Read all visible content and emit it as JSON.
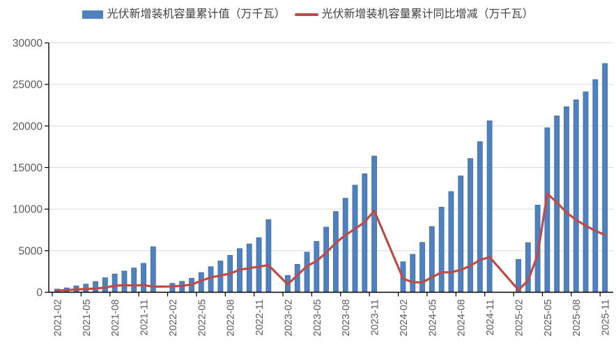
{
  "legend": {
    "items": [
      {
        "label": "光伏新增装机容量累计值（万千瓦）",
        "type": "bar"
      },
      {
        "label": "光伏新增装机容量累计同比增减（万千瓦）",
        "type": "line"
      }
    ],
    "position": "top"
  },
  "colors": {
    "bar": "#4E81BD",
    "bar_border": "#3A6496",
    "line": "#BE4B48",
    "grid": "#D9D9D9",
    "axis": "#000000",
    "tick_label": "#595959",
    "legend_text": "#3F3F3F",
    "background": "#FFFFFF"
  },
  "chart_data": {
    "type": "bar+line",
    "title": "",
    "x_unit": "month",
    "months": [
      "2021-02",
      "2021-03",
      "2021-04",
      "2021-05",
      "2021-06",
      "2021-07",
      "2021-08",
      "2021-09",
      "2021-10",
      "2021-11",
      "2021-12",
      "2022-02",
      "2022-03",
      "2022-04",
      "2022-05",
      "2022-06",
      "2022-07",
      "2022-08",
      "2022-09",
      "2022-10",
      "2022-11",
      "2022-12",
      "2023-02",
      "2023-03",
      "2023-04",
      "2023-05",
      "2023-06",
      "2023-07",
      "2023-08",
      "2023-09",
      "2023-10",
      "2023-11",
      "2024-02",
      "2024-03",
      "2024-04",
      "2024-05",
      "2024-06",
      "2024-07",
      "2024-08",
      "2024-09",
      "2024-10",
      "2024-11",
      "2025-02",
      "2025-03",
      "2025-04",
      "2025-05",
      "2025-06",
      "2025-07",
      "2025-08",
      "2025-09",
      "2025-10",
      "2025-11"
    ],
    "series": [
      {
        "name": "光伏新增装机容量累计值（万千瓦）",
        "type": "bar",
        "color": "#4E81BD",
        "values": [
          390,
          533,
          769,
          992,
          1301,
          1752,
          2205,
          2556,
          2931,
          3483,
          5488,
          1086,
          1321,
          1688,
          2371,
          3088,
          3773,
          4447,
          5260,
          5824,
          6571,
          8741,
          2037,
          3366,
          4831,
          6121,
          7842,
          9716,
          11316,
          12894,
          14256,
          16388,
          3672,
          4574,
          6011,
          7915,
          10248,
          12116,
          13999,
          16088,
          18130,
          20630,
          3947,
          5971,
          10493,
          19785,
          21221,
          22324,
          23161,
          24115,
          25590,
          27520
        ]
      },
      {
        "name": "光伏新增装机容量累计同比增减（万千瓦）",
        "type": "line",
        "color": "#BE4B48",
        "values": [
          200,
          260,
          330,
          400,
          450,
          560,
          780,
          860,
          800,
          870,
          668,
          696,
          788,
          919,
          1379,
          1787,
          2021,
          2242,
          2704,
          2893,
          3088,
          3253,
          951,
          2045,
          3143,
          3750,
          4754,
          5943,
          6869,
          7634,
          8432,
          9817,
          1635,
          1208,
          1180,
          1794,
          2406,
          2400,
          2683,
          3194,
          3874,
          4242,
          275,
          1397,
          4482,
          11870,
          10800,
          9600,
          8700,
          8000,
          7400,
          6890
        ]
      }
    ],
    "y_axis": {
      "min": 0,
      "max": 30000,
      "tick_step": 5000,
      "ticks": [
        0,
        5000,
        10000,
        15000,
        20000,
        25000,
        30000
      ]
    },
    "x_axis": {
      "tick_labels": [
        "2021-02",
        "2021-05",
        "2021-08",
        "2021-11",
        "2022-02",
        "2022-05",
        "2022-08",
        "2022-11",
        "2023-02",
        "2023-05",
        "2023-08",
        "2023-11",
        "2024-02",
        "2024-05",
        "2024-08",
        "2024-11",
        "2025-02",
        "2025-05",
        "2025-08",
        "2025-11"
      ],
      "label_rotation": -90
    },
    "grid": "horizontal",
    "legend_position": "top"
  }
}
